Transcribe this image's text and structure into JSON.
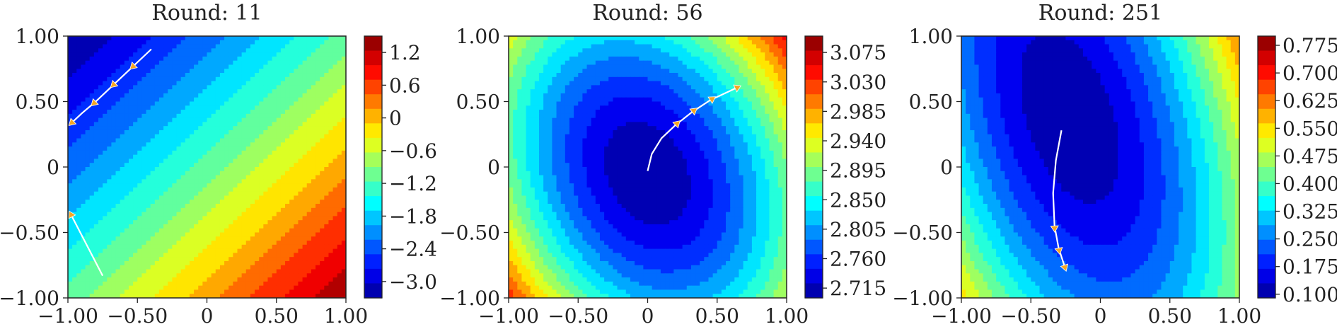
{
  "chart_data": [
    {
      "type": "heatmap",
      "title": "Round: 11",
      "xlim": [
        -1.0,
        1.0
      ],
      "ylim": [
        -1.0,
        1.0
      ],
      "xticks": [
        "−1.00",
        "−0.50",
        "0",
        "0.50",
        "1.00"
      ],
      "yticks": [
        "−1.00",
        "−0.50",
        "0",
        "0.50",
        "1.00"
      ],
      "colorbar": {
        "min": -3.3,
        "max": 1.5,
        "ticks": [
          "1.2",
          "0.6",
          "0",
          "−0.6",
          "−1.2",
          "−1.8",
          "−2.4",
          "−3.0"
        ],
        "tick_values": [
          1.2,
          0.6,
          0,
          -0.6,
          -1.2,
          -1.8,
          -2.4,
          -3.0
        ]
      },
      "field": {
        "kind": "diagonal",
        "levels": 16
      },
      "trajectories": [
        {
          "points": [
            [
              -0.4,
              0.9
            ],
            [
              -0.52,
              0.78
            ],
            [
              -0.66,
              0.64
            ],
            [
              -0.8,
              0.5
            ],
            [
              -0.9,
              0.41
            ],
            [
              -0.96,
              0.35
            ]
          ],
          "arrows": [
            [
              -0.52,
              0.78
            ],
            [
              -0.66,
              0.64
            ],
            [
              -0.8,
              0.5
            ],
            [
              -0.96,
              0.35
            ]
          ]
        },
        {
          "points": [
            [
              -0.75,
              -0.83
            ],
            [
              -0.97,
              -0.38
            ]
          ],
          "arrows": [
            [
              -0.97,
              -0.38
            ]
          ]
        }
      ]
    },
    {
      "type": "heatmap",
      "title": "Round: 56",
      "xlim": [
        -1.0,
        1.0
      ],
      "ylim": [
        -1.0,
        1.0
      ],
      "xticks": [
        "−1.00",
        "−0.50",
        "0",
        "0.50",
        "1.00"
      ],
      "yticks": [
        "−1.00",
        "−0.50",
        "0",
        "0.50",
        "1.00"
      ],
      "colorbar": {
        "min": 2.7,
        "max": 3.1,
        "ticks": [
          "3.075",
          "3.030",
          "2.985",
          "2.940",
          "2.895",
          "2.850",
          "2.805",
          "2.760",
          "2.715"
        ],
        "tick_values": [
          3.075,
          3.03,
          2.985,
          2.94,
          2.895,
          2.85,
          2.805,
          2.76,
          2.715
        ]
      },
      "field": {
        "kind": "ellipse",
        "cx": 0.0,
        "cy": -0.05,
        "levels": 16
      },
      "trajectories": [
        {
          "points": [
            [
              0.0,
              -0.03
            ],
            [
              0.03,
              0.1
            ],
            [
              0.1,
              0.22
            ],
            [
              0.2,
              0.32
            ],
            [
              0.32,
              0.42
            ],
            [
              0.45,
              0.51
            ],
            [
              0.63,
              0.6
            ]
          ],
          "arrows": [
            [
              0.2,
              0.32
            ],
            [
              0.32,
              0.42
            ],
            [
              0.45,
              0.51
            ],
            [
              0.63,
              0.6
            ]
          ]
        }
      ]
    },
    {
      "type": "heatmap",
      "title": "Round: 251",
      "xlim": [
        -1.0,
        1.0
      ],
      "ylim": [
        -1.0,
        1.0
      ],
      "xticks": [
        "−1.00",
        "−0.50",
        "0",
        "0.50",
        "1.00"
      ],
      "yticks": [
        "−1.00",
        "−0.50",
        "0",
        "0.50",
        "1.00"
      ],
      "colorbar": {
        "min": 0.09,
        "max": 0.8,
        "ticks": [
          "0.775",
          "0.700",
          "0.625",
          "0.550",
          "0.475",
          "0.400",
          "0.325",
          "0.250",
          "0.175",
          "0.100"
        ],
        "tick_values": [
          0.775,
          0.7,
          0.625,
          0.55,
          0.475,
          0.4,
          0.325,
          0.25,
          0.175,
          0.1
        ]
      },
      "field": {
        "kind": "tilted-ellipse",
        "cx": -0.22,
        "cy": 0.38,
        "levels": 16
      },
      "trajectories": [
        {
          "points": [
            [
              -0.28,
              0.28
            ],
            [
              -0.32,
              0.05
            ],
            [
              -0.34,
              -0.2
            ],
            [
              -0.33,
              -0.45
            ],
            [
              -0.3,
              -0.62
            ],
            [
              -0.26,
              -0.75
            ]
          ],
          "arrows": [
            [
              -0.33,
              -0.45
            ],
            [
              -0.3,
              -0.62
            ],
            [
              -0.26,
              -0.75
            ]
          ]
        }
      ]
    }
  ]
}
